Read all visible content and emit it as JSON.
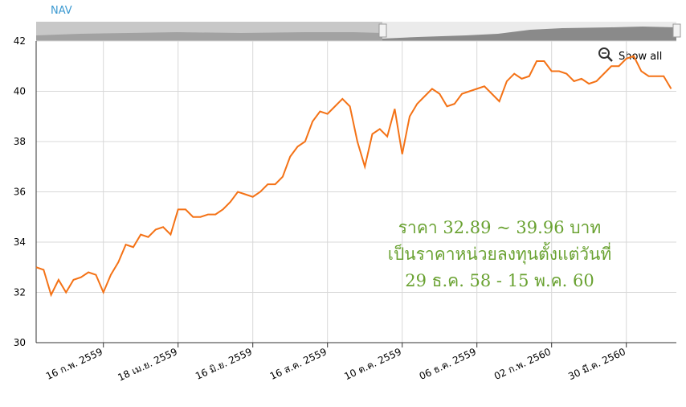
{
  "chart_data": {
    "type": "line",
    "y_axis_label": "NAV",
    "categories": [
      null,
      null,
      null,
      null,
      null,
      null,
      null,
      null,
      null,
      "16 ก.พ. 2559",
      null,
      null,
      null,
      null,
      null,
      null,
      null,
      null,
      null,
      "18 เม.ย. 2559",
      null,
      null,
      null,
      null,
      null,
      null,
      null,
      null,
      null,
      "16 มิ.ย. 2559",
      null,
      null,
      null,
      null,
      null,
      null,
      null,
      null,
      null,
      "16 ส.ค. 2559",
      null,
      null,
      null,
      null,
      null,
      null,
      null,
      null,
      null,
      "10 ต.ค. 2559",
      null,
      null,
      null,
      null,
      null,
      null,
      null,
      null,
      null,
      "06 ธ.ค. 2559",
      null,
      null,
      null,
      null,
      null,
      null,
      null,
      null,
      null,
      "02 ก.พ. 2560",
      null,
      null,
      null,
      null,
      null,
      null,
      null,
      null,
      null,
      "30 มี.ค. 2560",
      null,
      null,
      null,
      null,
      null,
      null
    ],
    "series": [
      {
        "color": "#f47216",
        "values": [
          33.0,
          32.9,
          31.9,
          32.5,
          32.0,
          32.5,
          32.6,
          32.8,
          32.7,
          32.0,
          32.7,
          33.2,
          33.9,
          33.8,
          34.3,
          34.2,
          34.5,
          34.6,
          34.3,
          35.3,
          35.3,
          35.0,
          35.0,
          35.1,
          35.1,
          35.3,
          35.6,
          36.0,
          35.9,
          35.8,
          36.0,
          36.3,
          36.3,
          36.6,
          37.4,
          37.8,
          38.0,
          38.8,
          39.2,
          39.1,
          39.4,
          39.7,
          39.4,
          38.0,
          37.0,
          38.3,
          38.5,
          38.2,
          39.3,
          37.5,
          39.0,
          39.5,
          39.8,
          40.1,
          39.9,
          39.4,
          39.5,
          39.9,
          40.0,
          40.1,
          40.2,
          39.9,
          39.6,
          40.4,
          40.7,
          40.5,
          40.6,
          41.2,
          41.2,
          40.8,
          40.8,
          40.7,
          40.4,
          40.5,
          40.3,
          40.4,
          40.7,
          41.0,
          41.0,
          41.3,
          41.4,
          40.8,
          40.6,
          40.6,
          40.6,
          40.1
        ]
      }
    ],
    "ylim": [
      30,
      42
    ],
    "yticks": [
      30,
      32,
      34,
      36,
      38,
      40,
      42
    ],
    "grid": true,
    "button": "Show all",
    "annotations": [
      "ราคา 32.89 ~ 39.96 บาท",
      "เป็นราคาหน่วยลงทุนตั้งแต่วันที่",
      "29 ธ.ค. 58 - 15 พ.ค. 60"
    ],
    "annotation_color": "#6aa232"
  }
}
